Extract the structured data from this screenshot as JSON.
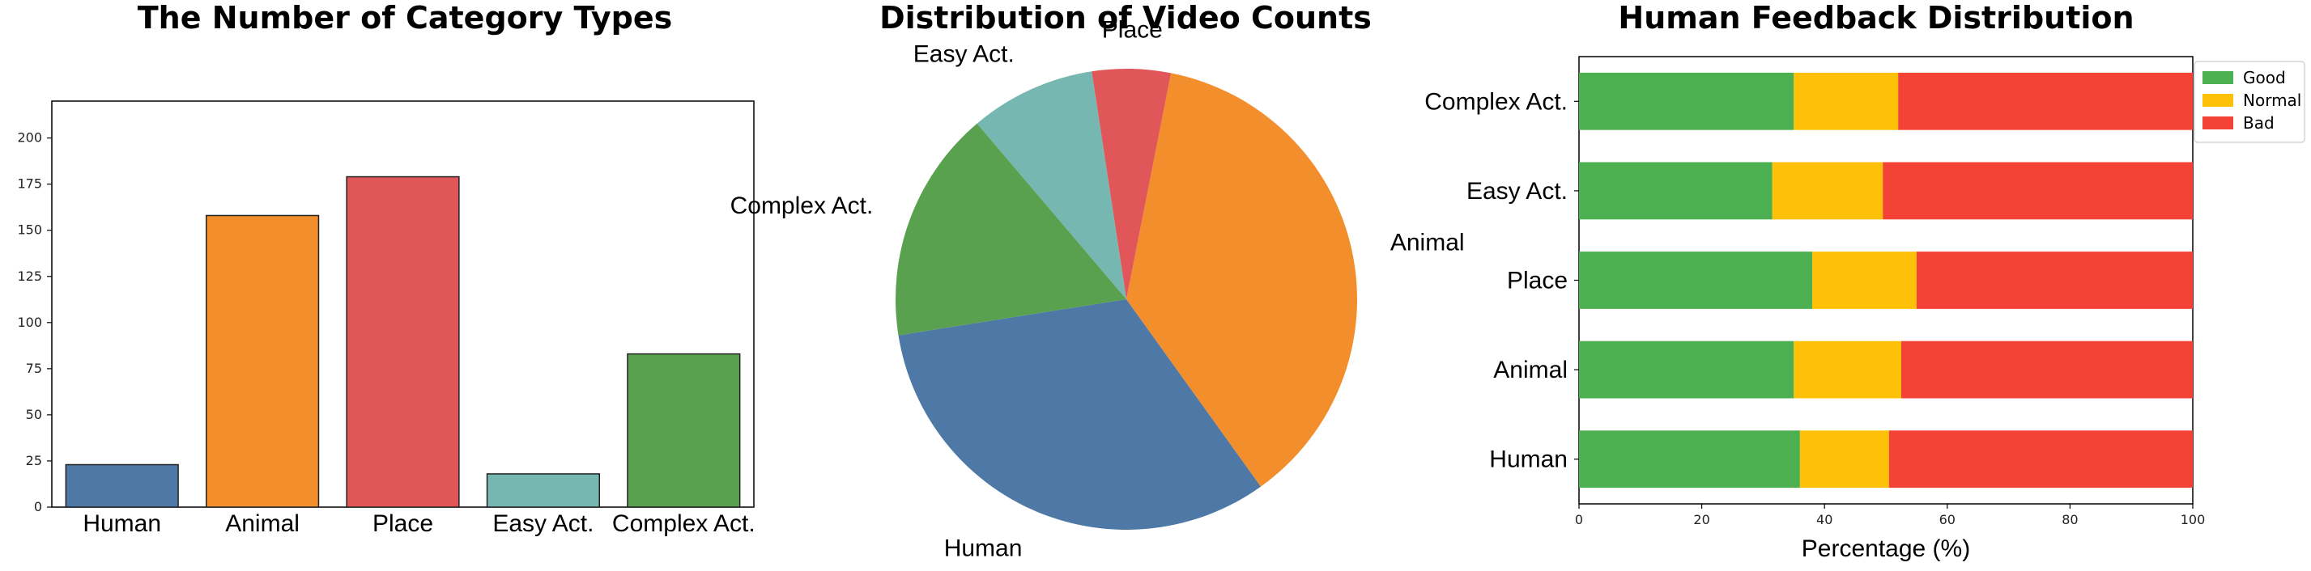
{
  "chart_data": [
    {
      "type": "bar",
      "title": "The Number of Category Types",
      "categories": [
        "Human",
        "Animal",
        "Place",
        "Easy Act.",
        "Complex Act."
      ],
      "values": [
        23,
        158,
        179,
        18,
        83
      ],
      "colors": [
        "#4e79a7",
        "#f28e2b",
        "#e15759",
        "#76b7b2",
        "#59a14f"
      ],
      "xlabel": "",
      "ylabel": "",
      "ylim": [
        0,
        220
      ],
      "yticks": [
        0,
        25,
        50,
        75,
        100,
        125,
        150,
        175,
        200
      ],
      "grid": false
    },
    {
      "type": "pie",
      "title": "Distribution of Video Counts",
      "labels": [
        "Human",
        "Animal",
        "Place",
        "Easy Act.",
        "Complex Act."
      ],
      "values": [
        32.4,
        37.0,
        5.5,
        8.8,
        16.3
      ],
      "colors": [
        "#4e79a7",
        "#f28e2b",
        "#e15759",
        "#76b7b2",
        "#59a14f"
      ]
    },
    {
      "type": "bar",
      "orientation": "horizontal",
      "stacked": true,
      "title": "Human Feedback Distribution",
      "categories": [
        "Human",
        "Animal",
        "Place",
        "Easy Act.",
        "Complex Act."
      ],
      "series": [
        {
          "name": "Good",
          "color": "#4caf50",
          "values": [
            36,
            35,
            38,
            31.5,
            35
          ]
        },
        {
          "name": "Normal",
          "color": "#ffc107",
          "values": [
            14.5,
            17.5,
            17,
            18,
            17
          ]
        },
        {
          "name": "Bad",
          "color": "#f44336",
          "values": [
            49.5,
            47.5,
            45,
            50.5,
            48
          ]
        }
      ],
      "xlabel": "Percentage (%)",
      "ylabel": "",
      "xlim": [
        0,
        100
      ],
      "xticks": [
        0,
        20,
        40,
        60,
        80,
        100
      ],
      "legend": "top-right",
      "grid": false
    }
  ]
}
